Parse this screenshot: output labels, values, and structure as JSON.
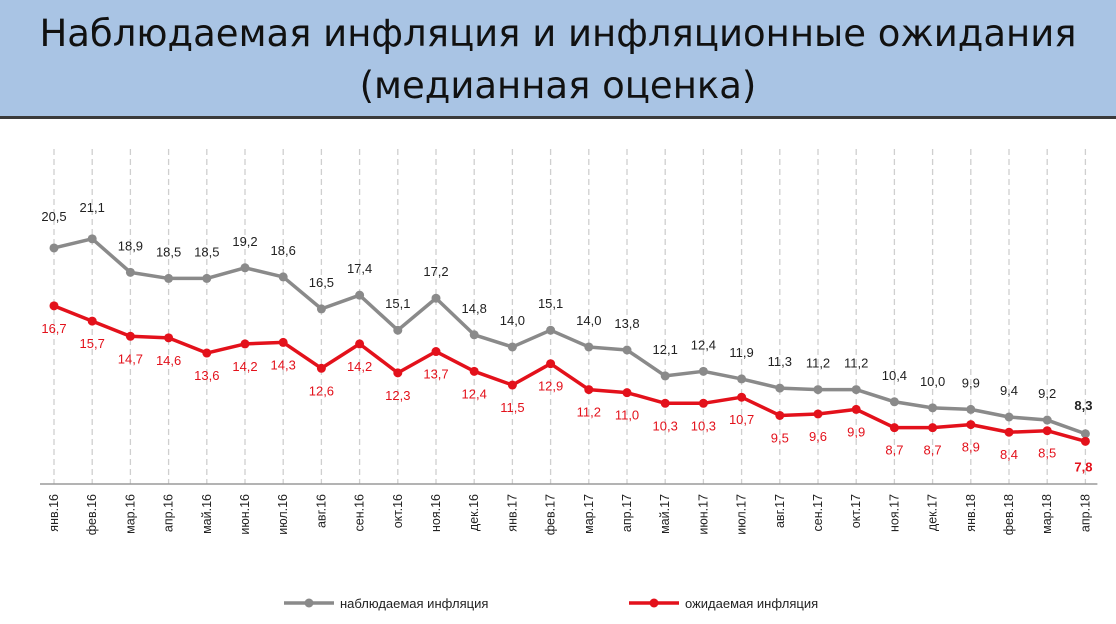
{
  "title_line1": "Наблюдаемая инфляция и инфляционные ожидания",
  "title_line2": "(медианная оценка)",
  "chart_data": {
    "type": "line",
    "x": [
      "янв.16",
      "фев.16",
      "мар.16",
      "апр.16",
      "май.16",
      "июн.16",
      "июл.16",
      "авг.16",
      "сен.16",
      "окт.16",
      "ноя.16",
      "дек.16",
      "янв.17",
      "фев.17",
      "мар.17",
      "апр.17",
      "май.17",
      "июн.17",
      "июл.17",
      "авг.17",
      "сен.17",
      "окт.17",
      "ноя.17",
      "дек.17",
      "янв.18",
      "фев.18",
      "мар.18",
      "апр.18"
    ],
    "series": [
      {
        "name": "наблюдаемая инфляция",
        "color": "#8a8a8a",
        "values": [
          20.5,
          21.1,
          18.9,
          18.5,
          18.5,
          19.2,
          18.6,
          16.5,
          17.4,
          15.1,
          17.2,
          14.8,
          14.0,
          15.1,
          14.0,
          13.8,
          12.1,
          12.4,
          11.9,
          11.3,
          11.2,
          11.2,
          10.4,
          10.0,
          9.9,
          9.4,
          9.2,
          8.3
        ],
        "labels": [
          "20,5",
          "21,1",
          "18,9",
          "18,5",
          "18,5",
          "19,2",
          "18,6",
          "16,5",
          "17,4",
          "15,1",
          "17,2",
          "14,8",
          "14,0",
          "15,1",
          "14,0",
          "13,8",
          "12,1",
          "12,4",
          "11,9",
          "11,3",
          "11,2",
          "11,2",
          "10,4",
          "10,0",
          "9,9",
          "9,4",
          "9,2",
          "8,3"
        ]
      },
      {
        "name": "ожидаемая инфляция",
        "color": "#e3111b",
        "values": [
          16.7,
          15.7,
          14.7,
          14.6,
          13.6,
          14.2,
          14.3,
          12.6,
          14.2,
          12.3,
          13.7,
          12.4,
          11.5,
          12.9,
          11.2,
          11.0,
          10.3,
          10.3,
          10.7,
          9.5,
          9.6,
          9.9,
          8.7,
          8.7,
          8.9,
          8.4,
          8.5,
          7.8
        ],
        "labels": [
          "16,7",
          "15,7",
          "14,7",
          "14,6",
          "13,6",
          "14,2",
          "14,3",
          "12,6",
          "14,2",
          "12,3",
          "13,7",
          "12,4",
          "11,5",
          "12,9",
          "11,2",
          "11,0",
          "10,3",
          "10,3",
          "10,7",
          "9,5",
          "9,6",
          "9,9",
          "8,7",
          "8,7",
          "8,9",
          "8,4",
          "8,5",
          "7,8"
        ]
      }
    ],
    "ylim": [
      5,
      27
    ],
    "grid": "vertical dashed",
    "legend": "bottom-center"
  }
}
